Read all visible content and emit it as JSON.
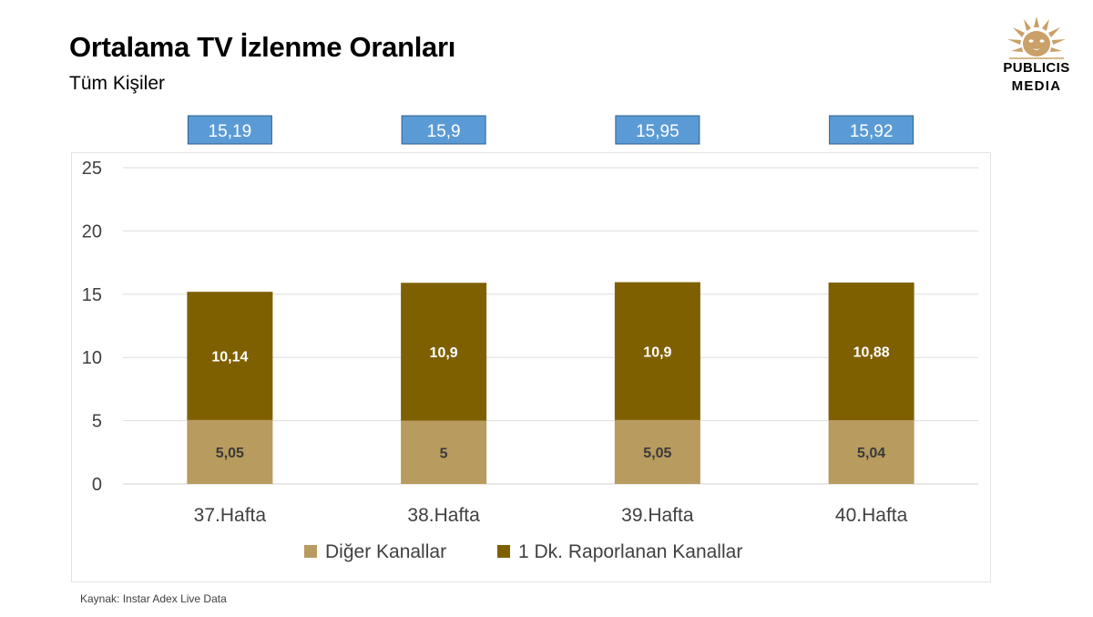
{
  "title": "Ortalama TV İzlenme Oranları",
  "subtitle": "Tüm Kişiler",
  "logo": {
    "line1": "PUBLICIS",
    "line2": "MEDIA",
    "icon": "lion-head-icon"
  },
  "source": "Kaynak: Instar  Adex Live Data",
  "chart_data": {
    "type": "bar",
    "stacked": true,
    "categories": [
      "37.Hafta",
      "38.Hafta",
      "39.Hafta",
      "40.Hafta"
    ],
    "series": [
      {
        "name": "Diğer Kanallar",
        "values": [
          5.05,
          5,
          5.05,
          5.04
        ],
        "labels": [
          "5,05",
          "5",
          "5,05",
          "5,04"
        ],
        "color": "#b89b5e"
      },
      {
        "name": "1 Dk. Raporlanan Kanallar",
        "values": [
          10.14,
          10.9,
          10.9,
          10.88
        ],
        "labels": [
          "10,14",
          "10,9",
          "10,9",
          "10,88"
        ],
        "color": "#7f6000"
      }
    ],
    "totals": [
      15.19,
      15.9,
      15.95,
      15.92
    ],
    "total_labels": [
      "15,19",
      "15,9",
      "15,95",
      "15,92"
    ],
    "total_box_color": "#5b9bd5",
    "ylim": [
      0,
      25
    ],
    "yticks": [
      0,
      5,
      10,
      15,
      20,
      25
    ],
    "grid": true,
    "legend_position": "bottom",
    "xlabel": "",
    "ylabel": ""
  }
}
